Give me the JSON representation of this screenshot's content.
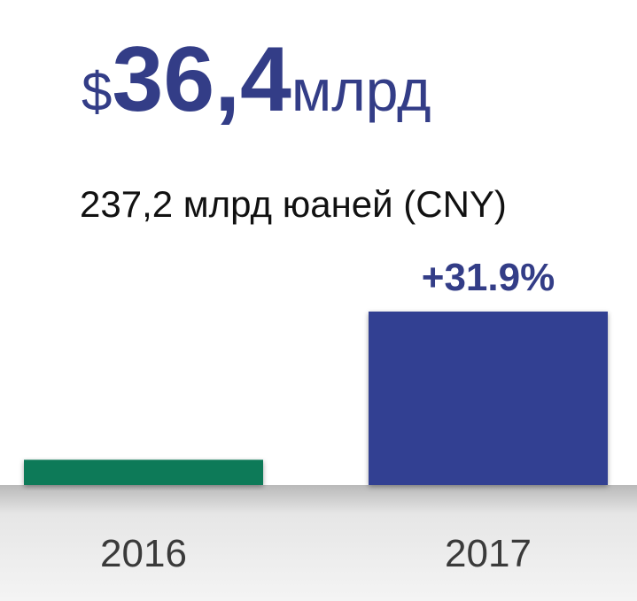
{
  "chart_data": {
    "type": "bar",
    "headline": {
      "currency": "$",
      "amount": "36,4",
      "unit": "млрд"
    },
    "subtitle": "237,2 млрд юаней (CNY)",
    "annotation": "+31.9%",
    "categories": [
      "2016",
      "2017"
    ],
    "values": [
      27.6,
      36.4
    ],
    "colors": [
      "#0e7a58",
      "#334092"
    ],
    "ylim": [
      26.1,
      36.4
    ]
  }
}
